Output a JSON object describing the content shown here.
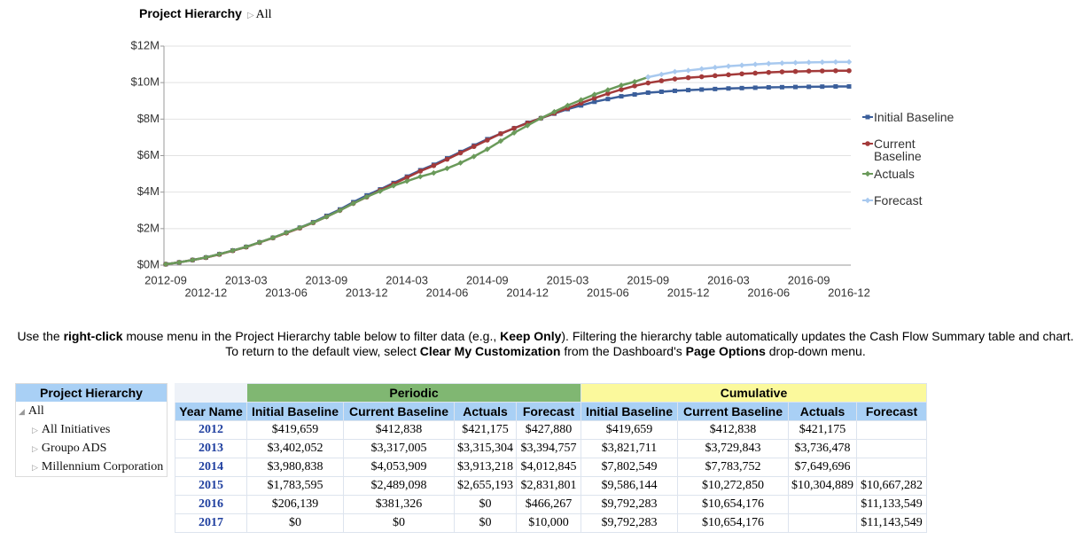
{
  "breadcrumb": {
    "label": "Project Hierarchy",
    "current": "All"
  },
  "chart_data": {
    "type": "line",
    "categories": [
      "2012-09",
      null,
      null,
      "2012-12",
      null,
      null,
      "2013-03",
      null,
      null,
      "2013-06",
      null,
      null,
      "2013-09",
      null,
      null,
      "2013-12",
      null,
      null,
      "2014-03",
      null,
      null,
      "2014-06",
      null,
      null,
      "2014-09",
      null,
      null,
      "2014-12",
      null,
      null,
      "2015-03",
      null,
      null,
      "2015-06",
      null,
      null,
      "2015-09",
      null,
      null,
      "2015-12",
      null,
      null,
      "2016-03",
      null,
      null,
      "2016-06",
      null,
      null,
      "2016-09",
      null,
      null,
      "2016-12"
    ],
    "ylim": [
      0,
      12000000
    ],
    "yticks": [
      {
        "value": 0,
        "label": "$0M"
      },
      {
        "value": 2000000,
        "label": "$2M"
      },
      {
        "value": 4000000,
        "label": "$4M"
      },
      {
        "value": 6000000,
        "label": "$6M"
      },
      {
        "value": 8000000,
        "label": "$8M"
      },
      {
        "value": 10000000,
        "label": "$10M"
      },
      {
        "value": 12000000,
        "label": "$12M"
      }
    ],
    "grid": true,
    "legend": "right",
    "series": [
      {
        "name": "Initial Baseline",
        "color": "#3b5f9b",
        "marker": "square",
        "values": [
          50000,
          150000,
          280000,
          420000,
          600000,
          800000,
          1000000,
          1250000,
          1500000,
          1780000,
          2050000,
          2350000,
          2700000,
          3050000,
          3450000,
          3820000,
          4150000,
          4500000,
          4850000,
          5200000,
          5500000,
          5850000,
          6200000,
          6550000,
          6900000,
          7200000,
          7500000,
          7800000,
          8050000,
          8300000,
          8550000,
          8750000,
          8950000,
          9100000,
          9250000,
          9350000,
          9450000,
          9500000,
          9550000,
          9590000,
          9620000,
          9650000,
          9680000,
          9700000,
          9720000,
          9740000,
          9750000,
          9760000,
          9770000,
          9780000,
          9790000,
          9790000
        ]
      },
      {
        "name": "Current Baseline",
        "color": "#a33a3a",
        "marker": "circle",
        "values": [
          50000,
          150000,
          280000,
          413000,
          590000,
          790000,
          990000,
          1240000,
          1490000,
          1760000,
          2030000,
          2320000,
          2650000,
          3000000,
          3380000,
          3730000,
          4100000,
          4450000,
          4800000,
          5150000,
          5450000,
          5800000,
          6150000,
          6500000,
          6850000,
          7200000,
          7500000,
          7780000,
          8050000,
          8320000,
          8600000,
          8880000,
          9150000,
          9400000,
          9620000,
          9820000,
          9980000,
          10100000,
          10200000,
          10270000,
          10320000,
          10380000,
          10430000,
          10480000,
          10520000,
          10560000,
          10590000,
          10610000,
          10630000,
          10640000,
          10650000,
          10650000
        ]
      },
      {
        "name": "Actuals",
        "color": "#6a9a5a",
        "marker": "diamond",
        "values": [
          50000,
          150000,
          280000,
          421000,
          600000,
          800000,
          1000000,
          1250000,
          1500000,
          1780000,
          2050000,
          2330000,
          2650000,
          3000000,
          3380000,
          3740000,
          4050000,
          4350000,
          4600000,
          4850000,
          5050000,
          5300000,
          5600000,
          5950000,
          6350000,
          6800000,
          7250000,
          7650000,
          8050000,
          8400000,
          8750000,
          9050000,
          9350000,
          9600000,
          9850000,
          10050000,
          10300000,
          null,
          null,
          null,
          null,
          null,
          null,
          null,
          null,
          null,
          null,
          null,
          null,
          null,
          null,
          null
        ]
      },
      {
        "name": "Forecast",
        "color": "#a8c9ef",
        "marker": "diamond",
        "values": [
          null,
          null,
          null,
          null,
          null,
          null,
          null,
          null,
          null,
          null,
          null,
          null,
          null,
          null,
          null,
          null,
          null,
          null,
          null,
          null,
          null,
          null,
          null,
          null,
          null,
          null,
          null,
          null,
          null,
          null,
          null,
          null,
          null,
          null,
          null,
          null,
          10300000,
          10450000,
          10600000,
          10667000,
          10750000,
          10830000,
          10900000,
          10950000,
          11000000,
          11040000,
          11070000,
          11090000,
          11110000,
          11120000,
          11130000,
          11134000
        ]
      }
    ]
  },
  "instructions": [
    [
      "Use the ",
      "right-click",
      " mouse menu in the Project Hierarchy table below to filter data (e.g., ",
      "Keep Only",
      "). Filtering the hierarchy table automatically updates the Cash Flow Summary table and chart."
    ],
    [
      "To return to the default view, select ",
      "Clear My Customization",
      " from the Dashboard's ",
      "Page Options",
      " drop-down menu."
    ]
  ],
  "hierarchy": {
    "header": "Project Hierarchy",
    "items": [
      "All",
      "All Initiatives",
      "Groupo ADS",
      "Millennium Corporation"
    ]
  },
  "table": {
    "groups": [
      "Periodic",
      "Cumulative"
    ],
    "columns": [
      "Year Name",
      "Initial Baseline",
      "Current Baseline",
      "Actuals",
      "Forecast",
      "Initial Baseline",
      "Current Baseline",
      "Actuals",
      "Forecast"
    ],
    "rows": [
      [
        "2012",
        "$419,659",
        "$412,838",
        "$421,175",
        "$427,880",
        "$419,659",
        "$412,838",
        "$421,175",
        null
      ],
      [
        "2013",
        "$3,402,052",
        "$3,317,005",
        "$3,315,304",
        "$3,394,757",
        "$3,821,711",
        "$3,729,843",
        "$3,736,478",
        null
      ],
      [
        "2014",
        "$3,980,838",
        "$4,053,909",
        "$3,913,218",
        "$4,012,845",
        "$7,802,549",
        "$7,783,752",
        "$7,649,696",
        null
      ],
      [
        "2015",
        "$1,783,595",
        "$2,489,098",
        "$2,655,193",
        "$2,831,801",
        "$9,586,144",
        "$10,272,850",
        "$10,304,889",
        "$10,667,282"
      ],
      [
        "2016",
        "$206,139",
        "$381,326",
        "$0",
        "$466,267",
        "$9,792,283",
        "$10,654,176",
        null,
        "$11,133,549"
      ],
      [
        "2017",
        "$0",
        "$0",
        "$0",
        "$10,000",
        "$9,792,283",
        "$10,654,176",
        null,
        "$11,143,549"
      ]
    ]
  }
}
